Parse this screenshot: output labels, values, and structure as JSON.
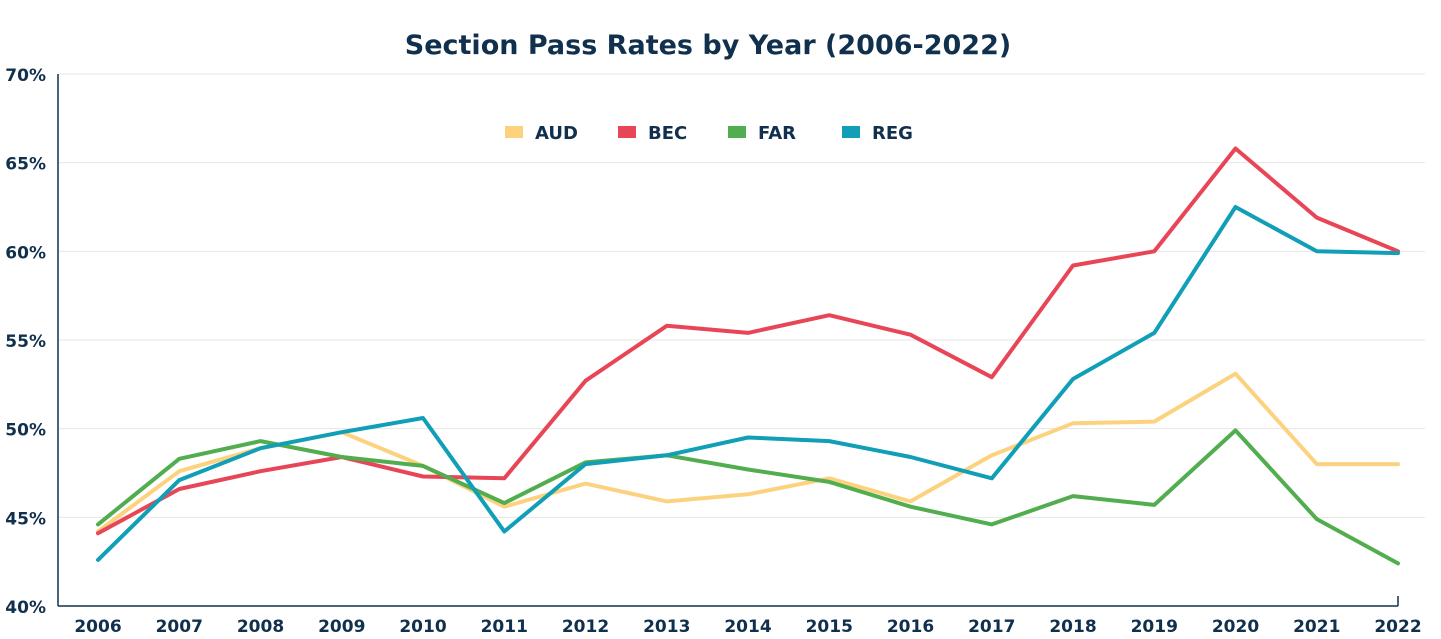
{
  "chart_data": {
    "type": "line",
    "title": "Section Pass Rates by Year (2006-2022)",
    "xlabel": "",
    "ylabel": "",
    "categories": [
      "2006",
      "2007",
      "2008",
      "2009",
      "2010",
      "2011",
      "2012",
      "2013",
      "2014",
      "2015",
      "2016",
      "2017",
      "2018",
      "2019",
      "2020",
      "2021",
      "2022"
    ],
    "ylim": [
      40,
      70
    ],
    "yticks": [
      40,
      45,
      50,
      55,
      60,
      65,
      70
    ],
    "ytick_labels": [
      "40%",
      "45%",
      "50%",
      "55%",
      "60%",
      "65%",
      "70%"
    ],
    "grid": true,
    "legend_position": "top-center",
    "series": [
      {
        "name": "AUD",
        "color": "#fdd27e",
        "values": [
          44.2,
          47.6,
          48.9,
          49.8,
          47.9,
          45.6,
          46.9,
          45.9,
          46.3,
          47.2,
          45.9,
          48.5,
          50.3,
          50.4,
          53.1,
          48.0,
          48.0
        ]
      },
      {
        "name": "BEC",
        "color": "#e84656",
        "values": [
          44.1,
          46.6,
          47.6,
          48.4,
          47.3,
          47.2,
          52.7,
          55.8,
          55.4,
          56.4,
          55.3,
          52.9,
          59.2,
          60.0,
          65.8,
          61.9,
          60.0
        ]
      },
      {
        "name": "FAR",
        "color": "#52ad4f",
        "values": [
          44.6,
          48.3,
          49.3,
          48.4,
          47.9,
          45.8,
          48.1,
          48.5,
          47.7,
          47.0,
          45.6,
          44.6,
          46.2,
          45.7,
          49.9,
          44.9,
          42.4
        ]
      },
      {
        "name": "REG",
        "color": "#109fb6",
        "values": [
          42.6,
          47.1,
          48.9,
          49.8,
          50.6,
          44.2,
          48.0,
          48.5,
          49.5,
          49.3,
          48.4,
          47.2,
          52.8,
          55.4,
          62.5,
          60.0,
          59.9
        ]
      }
    ]
  },
  "colors": {
    "title": "#10304d",
    "axis": "#10304d",
    "grid": "#e6e6e6"
  }
}
